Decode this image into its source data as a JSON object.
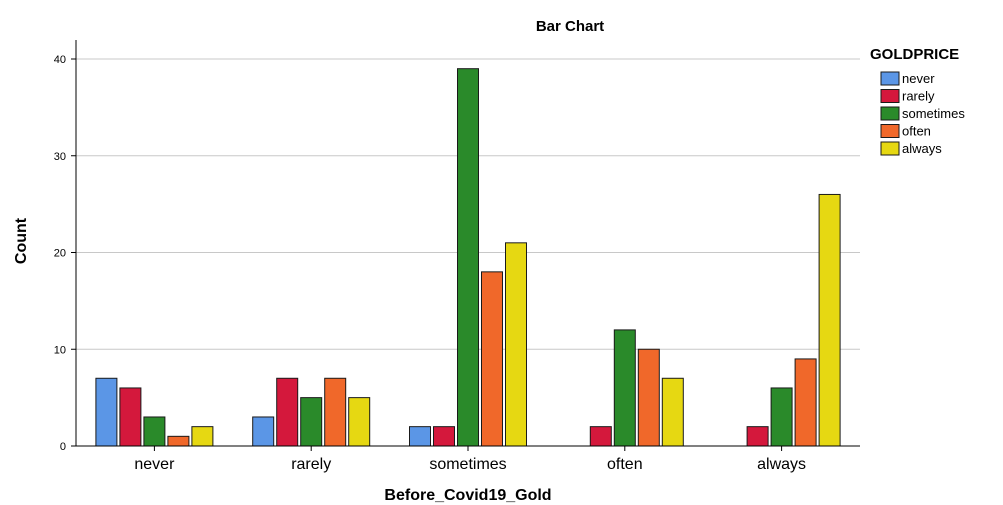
{
  "chart_data": {
    "type": "bar",
    "title": "Bar Chart",
    "xlabel": "Before_Covid19_Gold",
    "ylabel": "Count",
    "categories": [
      "never",
      "rarely",
      "sometimes",
      "often",
      "always"
    ],
    "ylim": [
      0,
      40
    ],
    "yticks": [
      0,
      10,
      20,
      30,
      40
    ],
    "grid": true,
    "legend_title": "GOLDPRICE",
    "legend_position": "top-right",
    "series": [
      {
        "name": "never",
        "color": "#5b96e6",
        "values": [
          7,
          3,
          2,
          null,
          null
        ]
      },
      {
        "name": "rarely",
        "color": "#d4183c",
        "values": [
          6,
          7,
          2,
          2,
          2
        ]
      },
      {
        "name": "sometimes",
        "color": "#2a8a2a",
        "values": [
          3,
          5,
          39,
          12,
          6
        ]
      },
      {
        "name": "often",
        "color": "#f0682a",
        "values": [
          1,
          7,
          18,
          10,
          9
        ]
      },
      {
        "name": "always",
        "color": "#e6d812",
        "values": [
          2,
          5,
          21,
          7,
          26
        ]
      }
    ]
  }
}
